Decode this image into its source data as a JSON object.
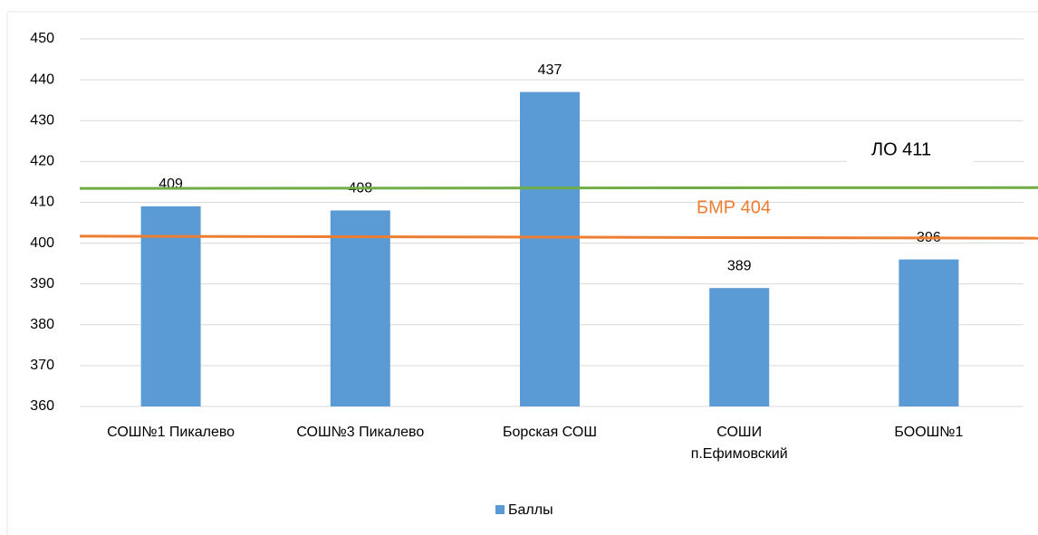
{
  "chart_data": {
    "type": "bar",
    "categories": [
      "СОШ№1 Пикалево",
      "СОШ№3 Пикалево",
      "Борская СОШ",
      "СОШИ\nп.Ефимовский",
      "БООШ№1"
    ],
    "series": [
      {
        "name": "Баллы",
        "color": "#5b9bd5",
        "values": [
          409,
          408,
          437,
          389,
          396
        ]
      }
    ],
    "ylim": [
      360,
      450
    ],
    "yticks": [
      360,
      370,
      380,
      390,
      400,
      410,
      420,
      430,
      440,
      450
    ],
    "grid": true,
    "reference_lines": [
      {
        "label": "ЛО 411",
        "color": "#70ad47",
        "values": [
          413.4,
          413.6
        ]
      },
      {
        "label": "БМР 404",
        "color": "#ed7d31",
        "values": [
          401.7,
          401.2
        ]
      }
    ],
    "legend": "bottom"
  }
}
